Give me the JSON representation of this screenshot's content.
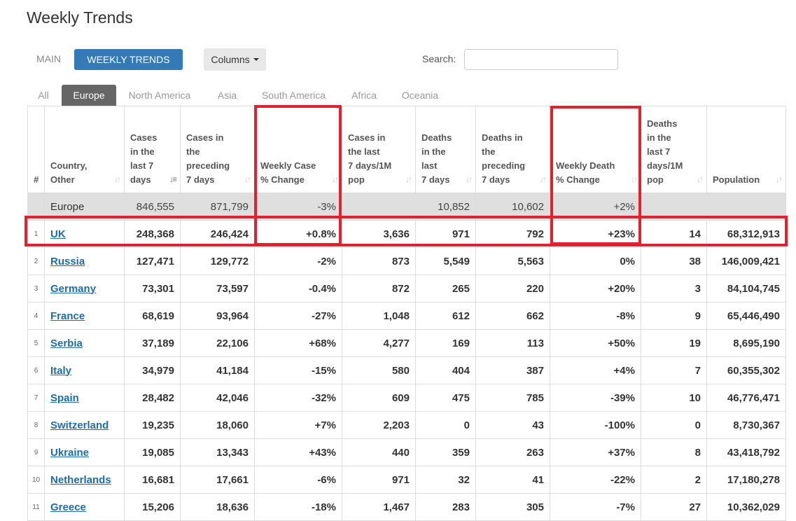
{
  "page": {
    "title": "Weekly Trends"
  },
  "toolbar": {
    "main_label": "MAIN",
    "weekly_label": "WEEKLY TRENDS",
    "columns_label": "Columns",
    "search_label": "Search:",
    "search_value": ""
  },
  "tabs": [
    {
      "label": "All",
      "active": false
    },
    {
      "label": "Europe",
      "active": true
    },
    {
      "label": "North America",
      "active": false
    },
    {
      "label": "Asia",
      "active": false
    },
    {
      "label": "South America",
      "active": false
    },
    {
      "label": "Africa",
      "active": false
    },
    {
      "label": "Oceania",
      "active": false
    }
  ],
  "table": {
    "headers": [
      "#",
      "Country,\nOther",
      "Cases\nin the\nlast 7\ndays",
      "Cases in\nthe\npreceding\n7 days",
      "Weekly Case\n% Change",
      "Cases in\nthe last\n7 days/1M\npop",
      "Deaths\nin the\nlast\n7 days",
      "Deaths in\nthe\npreceding\n7 days",
      "Weekly Death\n% Change",
      "Deaths\nin the\nlast 7\ndays/1M\npop",
      "Population"
    ],
    "region_row": [
      "",
      "Europe",
      "846,555",
      "871,799",
      "-3%",
      "",
      "10,852",
      "10,602",
      "+2%",
      "",
      ""
    ],
    "rows": [
      [
        "1",
        "UK",
        "248,368",
        "246,424",
        "+0.8%",
        "3,636",
        "971",
        "792",
        "+23%",
        "14",
        "68,312,913"
      ],
      [
        "2",
        "Russia",
        "127,471",
        "129,772",
        "-2%",
        "873",
        "5,549",
        "5,563",
        "0%",
        "38",
        "146,009,421"
      ],
      [
        "3",
        "Germany",
        "73,301",
        "73,597",
        "-0.4%",
        "872",
        "265",
        "220",
        "+20%",
        "3",
        "84,104,745"
      ],
      [
        "4",
        "France",
        "68,619",
        "93,964",
        "-27%",
        "1,048",
        "612",
        "662",
        "-8%",
        "9",
        "65,446,490"
      ],
      [
        "5",
        "Serbia",
        "37,189",
        "22,106",
        "+68%",
        "4,277",
        "169",
        "113",
        "+50%",
        "19",
        "8,695,190"
      ],
      [
        "6",
        "Italy",
        "34,979",
        "41,184",
        "-15%",
        "580",
        "404",
        "387",
        "+4%",
        "7",
        "60,355,302"
      ],
      [
        "7",
        "Spain",
        "28,482",
        "42,046",
        "-32%",
        "609",
        "475",
        "785",
        "-39%",
        "10",
        "46,776,471"
      ],
      [
        "8",
        "Switzerland",
        "19,235",
        "18,060",
        "+7%",
        "2,203",
        "0",
        "43",
        "-100%",
        "0",
        "8,730,367"
      ],
      [
        "9",
        "Ukraine",
        "19,085",
        "13,343",
        "+43%",
        "440",
        "359",
        "263",
        "+37%",
        "8",
        "43,418,792"
      ],
      [
        "10",
        "Netherlands",
        "16,681",
        "17,661",
        "-6%",
        "971",
        "32",
        "41",
        "-22%",
        "2",
        "17,180,278"
      ],
      [
        "11",
        "Greece",
        "15,206",
        "18,636",
        "-18%",
        "1,467",
        "283",
        "305",
        "-7%",
        "27",
        "10,362,029"
      ]
    ]
  },
  "colors": {
    "accent": "#337ab7",
    "active_tab": "#666666",
    "highlight": "#e0212e",
    "link": "#1f6ca7",
    "region_row": "#dfdfdf"
  },
  "icons": {
    "sort": "sort-arrows-icon",
    "sort_active": "sort-desc-icon",
    "dropdown": "caret-down-icon"
  }
}
